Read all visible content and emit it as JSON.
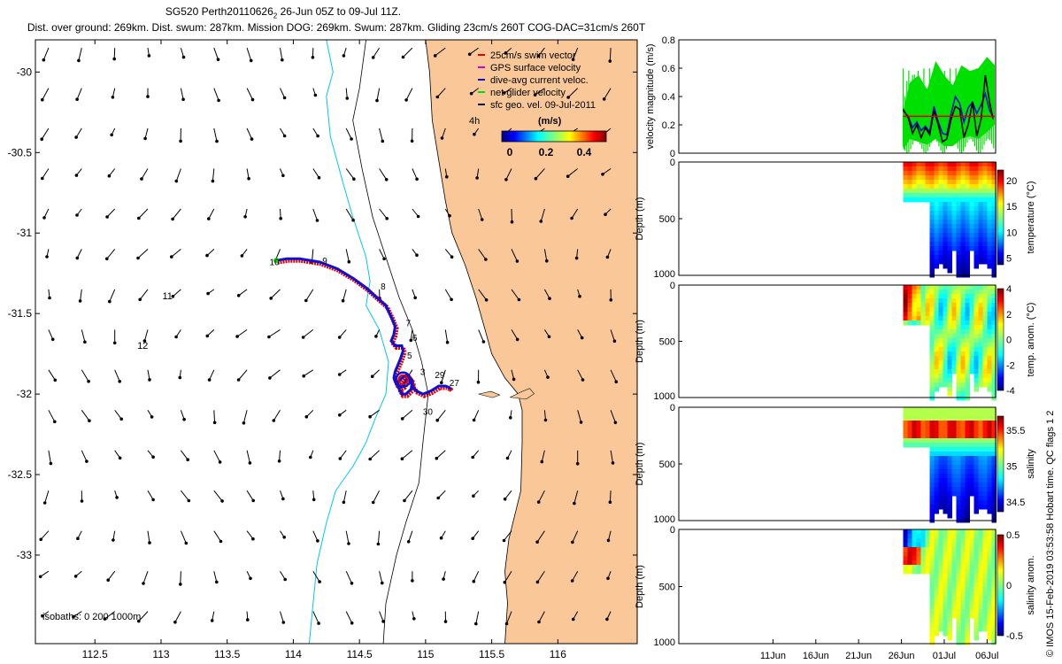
{
  "header": {
    "title_line1": "SG520 Perth20110626",
    "title_line1_sub": "2",
    "title_line1_rest": " 26-Jun 05Z to 09-Jul 11Z.",
    "title_line2": "Dist. over ground: 269km. Dist. swum: 287km. Mission DOG: 269km. Swum: 287km. Gliding 23cm/s 260T COG-DAC=31cm/s 260T"
  },
  "side_note": "© IMOS 15-Feb-2019 03:53:58 Hobart time. QC flags 1  2",
  "colors": {
    "land": "#fac898",
    "isobath": "#00c8f0",
    "swim": "#e00000",
    "current": "#1010d0",
    "net": "#00e000",
    "gps": "#d000d0"
  },
  "chart_data": [
    {
      "type": "map",
      "name": "track-map",
      "xlim": [
        112.05,
        116.6
      ],
      "ylim": [
        -33.55,
        -29.8
      ],
      "xticks": [
        "112.5",
        "113",
        "113.5",
        "114",
        "114.5",
        "115",
        "115.5",
        "116"
      ],
      "xtick_values": [
        112.5,
        113,
        113.5,
        114,
        114.5,
        115,
        115.5,
        116
      ],
      "yticks": [
        "-30",
        "-30.5",
        "-31",
        "-31.5",
        "-32",
        "-32.5",
        "-33"
      ],
      "ytick_values": [
        -30,
        -30.5,
        -31,
        -31.5,
        -32,
        -32.5,
        -33
      ],
      "legend": [
        {
          "label": "25cm/s swim vector",
          "color": "#e00000"
        },
        {
          "label": "GPS surface velocity",
          "color": "#d000d0"
        },
        {
          "label": "dive-avg current veloc.",
          "color": "#1010d0"
        },
        {
          "label": "net glider velocity",
          "color": "#00e000"
        },
        {
          "label": "sfc geo. vel. 09-Jul-2011",
          "color": "#000000"
        }
      ],
      "legend_extra": "4h",
      "colorbar_label": "(m/s)",
      "colorbar_ticks": [
        "0",
        "0.2",
        "0.4"
      ],
      "isobaths_label": "isobaths: 0   200   1000m",
      "track": {
        "lon": [
          113.87,
          113.95,
          114.05,
          114.2,
          114.33,
          114.45,
          114.55,
          114.63,
          114.7,
          114.74,
          114.77,
          114.76,
          114.74,
          114.77,
          114.82,
          114.83,
          114.81,
          114.79,
          114.77,
          114.76,
          114.78,
          114.81,
          114.83,
          114.85,
          114.87,
          114.9,
          114.89,
          114.85,
          114.82,
          114.8,
          114.79,
          114.82,
          114.86,
          114.88,
          114.9,
          114.93,
          114.98,
          115.04,
          115.1,
          115.15,
          115.18,
          115.19
        ],
        "lat": [
          -31.17,
          -31.16,
          -31.16,
          -31.18,
          -31.22,
          -31.28,
          -31.34,
          -31.4,
          -31.45,
          -31.52,
          -31.58,
          -31.63,
          -31.67,
          -31.7,
          -31.7,
          -31.73,
          -31.78,
          -31.82,
          -31.86,
          -31.9,
          -31.94,
          -31.96,
          -31.95,
          -31.92,
          -31.89,
          -31.92,
          -31.97,
          -32.0,
          -32.0,
          -31.97,
          -31.93,
          -31.9,
          -31.88,
          -31.9,
          -31.95,
          -31.98,
          -32.0,
          -31.98,
          -31.95,
          -31.95,
          -31.96,
          -31.97
        ]
      },
      "track_day_labels": [
        {
          "label": "10",
          "lon": 113.82,
          "lat": -31.2
        },
        {
          "label": "9",
          "lon": 114.22,
          "lat": -31.19
        },
        {
          "label": "8",
          "lon": 114.66,
          "lat": -31.35
        },
        {
          "label": "7",
          "lon": 114.85,
          "lat": -31.58
        },
        {
          "label": "6",
          "lon": 114.9,
          "lat": -31.67
        },
        {
          "label": "5",
          "lon": 114.86,
          "lat": -31.78
        },
        {
          "label": "3",
          "lon": 114.96,
          "lat": -31.88
        },
        {
          "label": "29",
          "lon": 115.07,
          "lat": -31.9
        },
        {
          "label": "27",
          "lon": 115.18,
          "lat": -31.95
        },
        {
          "label": "30",
          "lon": 114.98,
          "lat": -32.13
        }
      ],
      "map_labels": [
        {
          "label": "11",
          "lon": 113.01,
          "lat": -31.41
        },
        {
          "label": "12",
          "lon": 112.82,
          "lat": -31.72
        }
      ]
    },
    {
      "type": "line",
      "name": "velocity-panel",
      "ylabel": "velocity magnitude (m/s)",
      "ylim": [
        0,
        0.8
      ],
      "yticks": [
        "0",
        "0.2",
        "0.4",
        "0.6",
        "0.8"
      ],
      "xlim_days": [
        0,
        37
      ],
      "series": [
        {
          "color": "#1010d0",
          "x": [
            26.2,
            26.8,
            27.3,
            27.8,
            28.3,
            28.8,
            29.3,
            29.8,
            30.3,
            30.8,
            31.3,
            31.8,
            32.3,
            32.8,
            33.3,
            33.8,
            34.3,
            34.8,
            35.3,
            35.8,
            36.3,
            36.7
          ],
          "y": [
            0.3,
            0.26,
            0.18,
            0.22,
            0.16,
            0.19,
            0.15,
            0.33,
            0.22,
            0.14,
            0.13,
            0.28,
            0.4,
            0.35,
            0.22,
            0.32,
            0.36,
            0.28,
            0.34,
            0.42,
            0.3,
            0.26
          ]
        },
        {
          "color": "#000000",
          "x": [
            26.2,
            26.8,
            27.3,
            27.8,
            28.3,
            28.8,
            29.3,
            29.8,
            30.3,
            30.8,
            31.3,
            31.8,
            32.3,
            32.8,
            33.3,
            33.8,
            34.3,
            34.8,
            35.3,
            35.8,
            36.3,
            36.7
          ],
          "y": [
            0.31,
            0.25,
            0.14,
            0.2,
            0.11,
            0.18,
            0.13,
            0.3,
            0.2,
            0.08,
            0.1,
            0.24,
            0.33,
            0.31,
            0.11,
            0.2,
            0.36,
            0.12,
            0.24,
            0.55,
            0.36,
            0.24
          ]
        },
        {
          "color": "#e00000",
          "x": [
            26.2,
            36.9
          ],
          "y": [
            0.26,
            0.26
          ]
        }
      ],
      "green_band": {
        "x": [
          26.2,
          27.0,
          28.0,
          29.0,
          30.0,
          31.0,
          32.0,
          33.0,
          34.0,
          35.0,
          36.0,
          36.9
        ],
        "low": [
          0.02,
          0.1,
          0.08,
          0.06,
          0.1,
          0.05,
          0.05,
          0.1,
          0.12,
          0.1,
          0.15,
          0.2
        ],
        "high": [
          0.3,
          0.5,
          0.55,
          0.45,
          0.65,
          0.55,
          0.48,
          0.62,
          0.58,
          0.6,
          0.68,
          0.62
        ]
      }
    },
    {
      "type": "heatmap",
      "name": "temperature-panel",
      "ylabel": "Depth (m)",
      "cbar_label": "temperature (°C)",
      "cbar_ticks": [
        "20",
        "15",
        "10",
        "5"
      ],
      "yticks": [
        "0",
        "500",
        "1000"
      ]
    },
    {
      "type": "heatmap",
      "name": "temp-anom-panel",
      "ylabel": "Depth (m)",
      "cbar_label": "temp. anom. (°C)",
      "cbar_ticks": [
        "4",
        "2",
        "0",
        "-2",
        "-4"
      ],
      "yticks": [
        "0",
        "500",
        "1000"
      ]
    },
    {
      "type": "heatmap",
      "name": "salinity-panel",
      "ylabel": "Depth (m)",
      "cbar_label": "salinity",
      "cbar_ticks": [
        "35.5",
        "35",
        "34.5"
      ],
      "yticks": [
        "0",
        "500",
        "1000"
      ]
    },
    {
      "type": "heatmap",
      "name": "salinity-anom-panel",
      "ylabel": "Depth (m)",
      "cbar_label": "salinity anom.",
      "cbar_ticks": [
        "0.5",
        "0",
        "-0.5"
      ],
      "yticks": [
        "0",
        "500",
        "1000"
      ],
      "xticks": [
        "11Jun",
        "16Jun",
        "21Jun",
        "26Jun",
        "01Jul",
        "06Jul"
      ]
    }
  ]
}
